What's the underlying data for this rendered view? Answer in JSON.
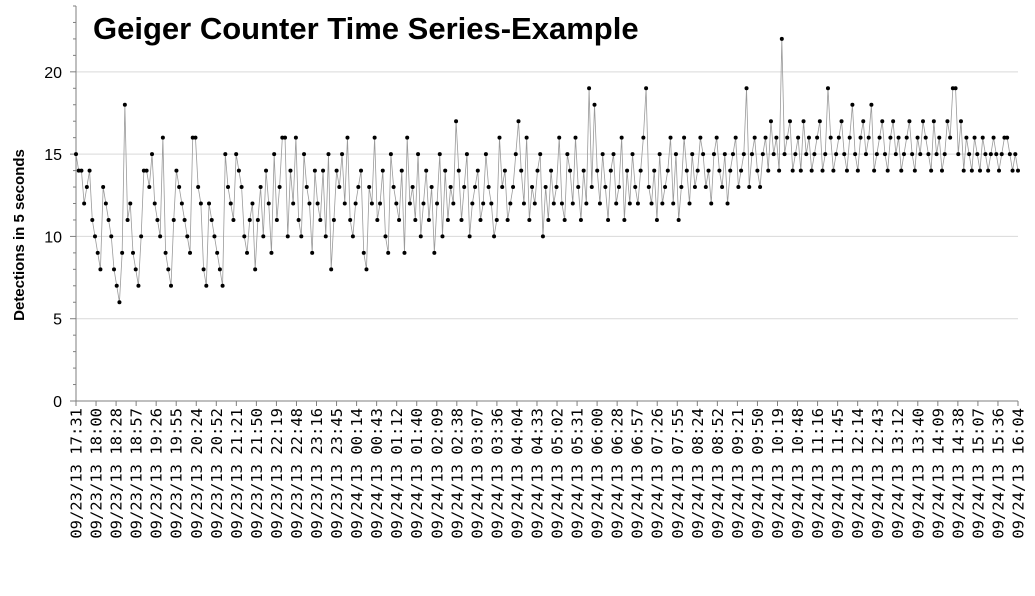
{
  "chart_data": {
    "type": "line",
    "title": "Geiger Counter Time Series-Example",
    "xlabel": "",
    "ylabel": "Detections in 5 seconds",
    "ylim": [
      0,
      24
    ],
    "yticks": [
      0,
      5,
      10,
      15,
      20
    ],
    "grid": {
      "horizontal": true,
      "vertical": false
    },
    "legend": "none",
    "x_tick_labels": [
      "09/23/13 17:31",
      "09/23/13 18:00",
      "09/23/13 18:28",
      "09/23/13 18:57",
      "09/23/13 19:26",
      "09/23/13 19:55",
      "09/23/13 20:24",
      "09/23/13 20:52",
      "09/23/13 21:21",
      "09/23/13 21:50",
      "09/23/13 22:19",
      "09/23/13 22:48",
      "09/23/13 23:16",
      "09/23/13 23:45",
      "09/24/13 00:14",
      "09/24/13 00:43",
      "09/24/13 01:12",
      "09/24/13 01:40",
      "09/24/13 02:09",
      "09/24/13 02:38",
      "09/24/13 03:07",
      "09/24/13 03:36",
      "09/24/13 04:04",
      "09/24/13 04:33",
      "09/24/13 05:02",
      "09/24/13 05:31",
      "09/24/13 06:00",
      "09/24/13 06:28",
      "09/24/13 06:57",
      "09/24/13 07:26",
      "09/24/13 07:55",
      "09/24/13 08:24",
      "09/24/13 08:52",
      "09/24/13 09:21",
      "09/24/13 09:50",
      "09/24/13 10:19",
      "09/24/13 10:48",
      "09/24/13 11:16",
      "09/24/13 11:45",
      "09/24/13 12:14",
      "09/24/13 12:43",
      "09/24/13 13:12",
      "09/24/13 13:40",
      "09/24/13 14:09",
      "09/24/13 14:38",
      "09/24/13 15:07",
      "09/24/13 15:36",
      "09/24/13 16:04"
    ],
    "series": [
      {
        "color_line": "#9a9a9a",
        "color_marker": "#000000",
        "values": [
          15,
          14,
          14,
          12,
          13,
          14,
          11,
          10,
          9,
          8,
          13,
          12,
          11,
          10,
          8,
          7,
          6,
          9,
          18,
          11,
          12,
          9,
          8,
          7,
          10,
          14,
          14,
          13,
          15,
          12,
          11,
          10,
          16,
          9,
          8,
          7,
          11,
          14,
          13,
          12,
          11,
          10,
          9,
          16,
          16,
          13,
          12,
          8,
          7,
          12,
          11,
          10,
          9,
          8,
          7,
          15,
          13,
          12,
          11,
          15,
          14,
          13,
          10,
          9,
          11,
          12,
          8,
          11,
          13,
          10,
          14,
          12,
          9,
          15,
          11,
          13,
          16,
          16,
          10,
          14,
          12,
          16,
          11,
          10,
          15,
          13,
          12,
          9,
          14,
          12,
          11,
          14,
          10,
          15,
          8,
          11,
          14,
          13,
          15,
          12,
          16,
          11,
          10,
          12,
          13,
          14,
          9,
          8,
          13,
          12,
          16,
          11,
          12,
          14,
          10,
          9,
          15,
          13,
          12,
          11,
          14,
          9,
          16,
          12,
          13,
          11,
          15,
          10,
          12,
          14,
          11,
          13,
          9,
          12,
          15,
          10,
          14,
          11,
          13,
          12,
          17,
          14,
          11,
          13,
          15,
          10,
          12,
          13,
          14,
          11,
          12,
          15,
          13,
          12,
          10,
          11,
          16,
          13,
          14,
          11,
          12,
          13,
          15,
          17,
          14,
          12,
          16,
          11,
          13,
          12,
          14,
          15,
          10,
          13,
          11,
          14,
          12,
          13,
          16,
          12,
          11,
          15,
          14,
          12,
          16,
          13,
          11,
          14,
          12,
          19,
          13,
          18,
          14,
          12,
          15,
          13,
          11,
          14,
          15,
          12,
          13,
          16,
          11,
          14,
          12,
          15,
          13,
          12,
          14,
          16,
          19,
          13,
          12,
          14,
          11,
          15,
          12,
          13,
          14,
          16,
          12,
          15,
          11,
          13,
          16,
          14,
          12,
          15,
          13,
          14,
          16,
          15,
          13,
          14,
          12,
          15,
          16,
          14,
          13,
          15,
          12,
          14,
          15,
          16,
          13,
          14,
          15,
          19,
          13,
          15,
          16,
          14,
          13,
          15,
          16,
          14,
          17,
          15,
          16,
          14,
          22,
          15,
          16,
          17,
          14,
          15,
          16,
          14,
          17,
          15,
          16,
          14,
          15,
          16,
          17,
          14,
          15,
          19,
          16,
          14,
          15,
          16,
          17,
          15,
          14,
          16,
          18,
          15,
          14,
          16,
          17,
          15,
          16,
          18,
          14,
          15,
          16,
          17,
          15,
          14,
          16,
          17,
          15,
          16,
          14,
          15,
          16,
          17,
          15,
          14,
          16,
          15,
          17,
          16,
          15,
          14,
          17,
          15,
          16,
          14,
          15,
          17,
          16,
          19,
          19,
          15,
          17,
          14,
          16,
          15,
          14,
          16,
          15,
          14,
          16,
          15,
          14,
          15,
          16,
          15,
          14,
          15,
          16,
          16,
          15,
          14,
          15,
          14
        ]
      }
    ]
  }
}
